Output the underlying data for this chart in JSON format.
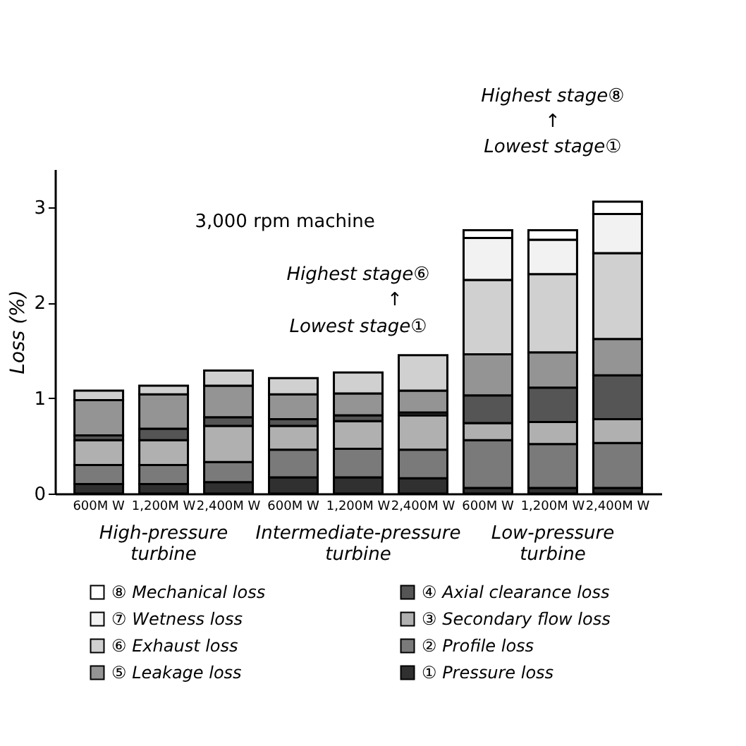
{
  "chart_data": {
    "type": "bar",
    "stacked": true,
    "ylabel": "Loss (%)",
    "categories": [
      "600M W",
      "1,200M W",
      "2,400M W",
      "600M W",
      "1,200M W",
      "2,400M W",
      "600M W",
      "1,200M W",
      "2,400M W"
    ],
    "series": [
      {
        "name": "① Pressure loss",
        "color": "#303030",
        "values": [
          0.1,
          0.1,
          0.12,
          0.17,
          0.17,
          0.16,
          0.06,
          0.06,
          0.06
        ]
      },
      {
        "name": "② Profile loss",
        "color": "#7a7a7a",
        "values": [
          0.2,
          0.2,
          0.21,
          0.29,
          0.3,
          0.3,
          0.5,
          0.46,
          0.47
        ]
      },
      {
        "name": "③ Secondary flow loss",
        "color": "#b0b0b0",
        "values": [
          0.26,
          0.26,
          0.38,
          0.25,
          0.29,
          0.36,
          0.18,
          0.23,
          0.25
        ]
      },
      {
        "name": "④ Axial clearance loss",
        "color": "#555555",
        "values": [
          0.05,
          0.12,
          0.09,
          0.07,
          0.06,
          0.03,
          0.29,
          0.36,
          0.46
        ]
      },
      {
        "name": "⑤ Leakage loss",
        "color": "#949494",
        "values": [
          0.37,
          0.36,
          0.33,
          0.26,
          0.23,
          0.23,
          0.43,
          0.37,
          0.38
        ]
      },
      {
        "name": "⑥ Exhaust loss",
        "color": "#d0d0d0",
        "values": [
          0.1,
          0.09,
          0.16,
          0.17,
          0.22,
          0.37,
          0.78,
          0.82,
          0.9
        ]
      },
      {
        "name": "⑦ Wetness loss",
        "color": "#f2f2f2",
        "values": [
          null,
          null,
          null,
          null,
          null,
          null,
          0.44,
          0.36,
          0.41
        ]
      },
      {
        "name": "⑧ Mechanical loss",
        "color": "#ffffff",
        "values": [
          null,
          null,
          null,
          null,
          null,
          null,
          0.08,
          0.1,
          0.13
        ]
      }
    ],
    "ylim": [
      0,
      3.4
    ],
    "yticks": [
      0,
      1,
      2,
      3
    ],
    "grid": false,
    "legend": "bottom",
    "annotations": [
      "3,000 rpm machine",
      "Highest stage⑥",
      "↑",
      "Lowest stage①",
      "Highest stage⑧",
      "↑",
      "Lowest stage①",
      "High-pressure turbine",
      "Intermediate-pressure turbine",
      "Low-pressure turbine"
    ]
  }
}
